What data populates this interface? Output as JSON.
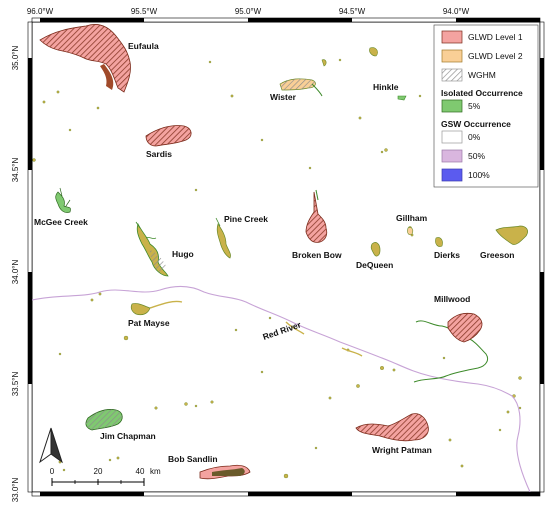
{
  "map": {
    "longitude_ticks": [
      "96.0°W",
      "95.5°W",
      "95.0°W",
      "94.5°W",
      "94.0°W"
    ],
    "latitude_ticks": [
      "35.0°N",
      "34.5°N",
      "34.0°N",
      "33.5°N",
      "33.0°N"
    ],
    "reservoirs": {
      "eufaula": "Eufaula",
      "sardis": "Sardis",
      "wister": "Wister",
      "hinkle": "Hinkle",
      "mcgee_creek": "McGee Creek",
      "pine_creek": "Pine Creek",
      "hugo": "Hugo",
      "broken_bow": "Broken Bow",
      "gillham": "Gillham",
      "dequeen": "DeQueen",
      "dierks": "Dierks",
      "greeson": "Greeson",
      "millwood": "Millwood",
      "pat_mayse": "Pat Mayse",
      "jim_chapman": "Jim Chapman",
      "bob_sandlin": "Bob Sandlin",
      "wright_patman": "Wright Patman"
    },
    "river_label": "Red River",
    "north_arrow": "north-arrow-icon",
    "scale_bar": {
      "ticks": [
        "0",
        "20",
        "40"
      ],
      "unit": "km"
    }
  },
  "legend": {
    "items": [
      {
        "label": "GLWD Level 1",
        "color": "#f4a3a0"
      },
      {
        "label": "GLWD Level 2",
        "color": "#f9cf96"
      },
      {
        "label": "WGHM",
        "color": "#9a9a9a"
      }
    ],
    "isolated_title": "Isolated Occurrence",
    "isolated_item": {
      "label": "5%",
      "color": "#7fc970"
    },
    "gsw_title": "GSW Occurrence",
    "gsw_items": [
      {
        "label": "0%",
        "color": "#ffffff"
      },
      {
        "label": "50%",
        "color": "#d9b6df"
      },
      {
        "label": "100%",
        "color": "#5b5bef"
      }
    ]
  }
}
